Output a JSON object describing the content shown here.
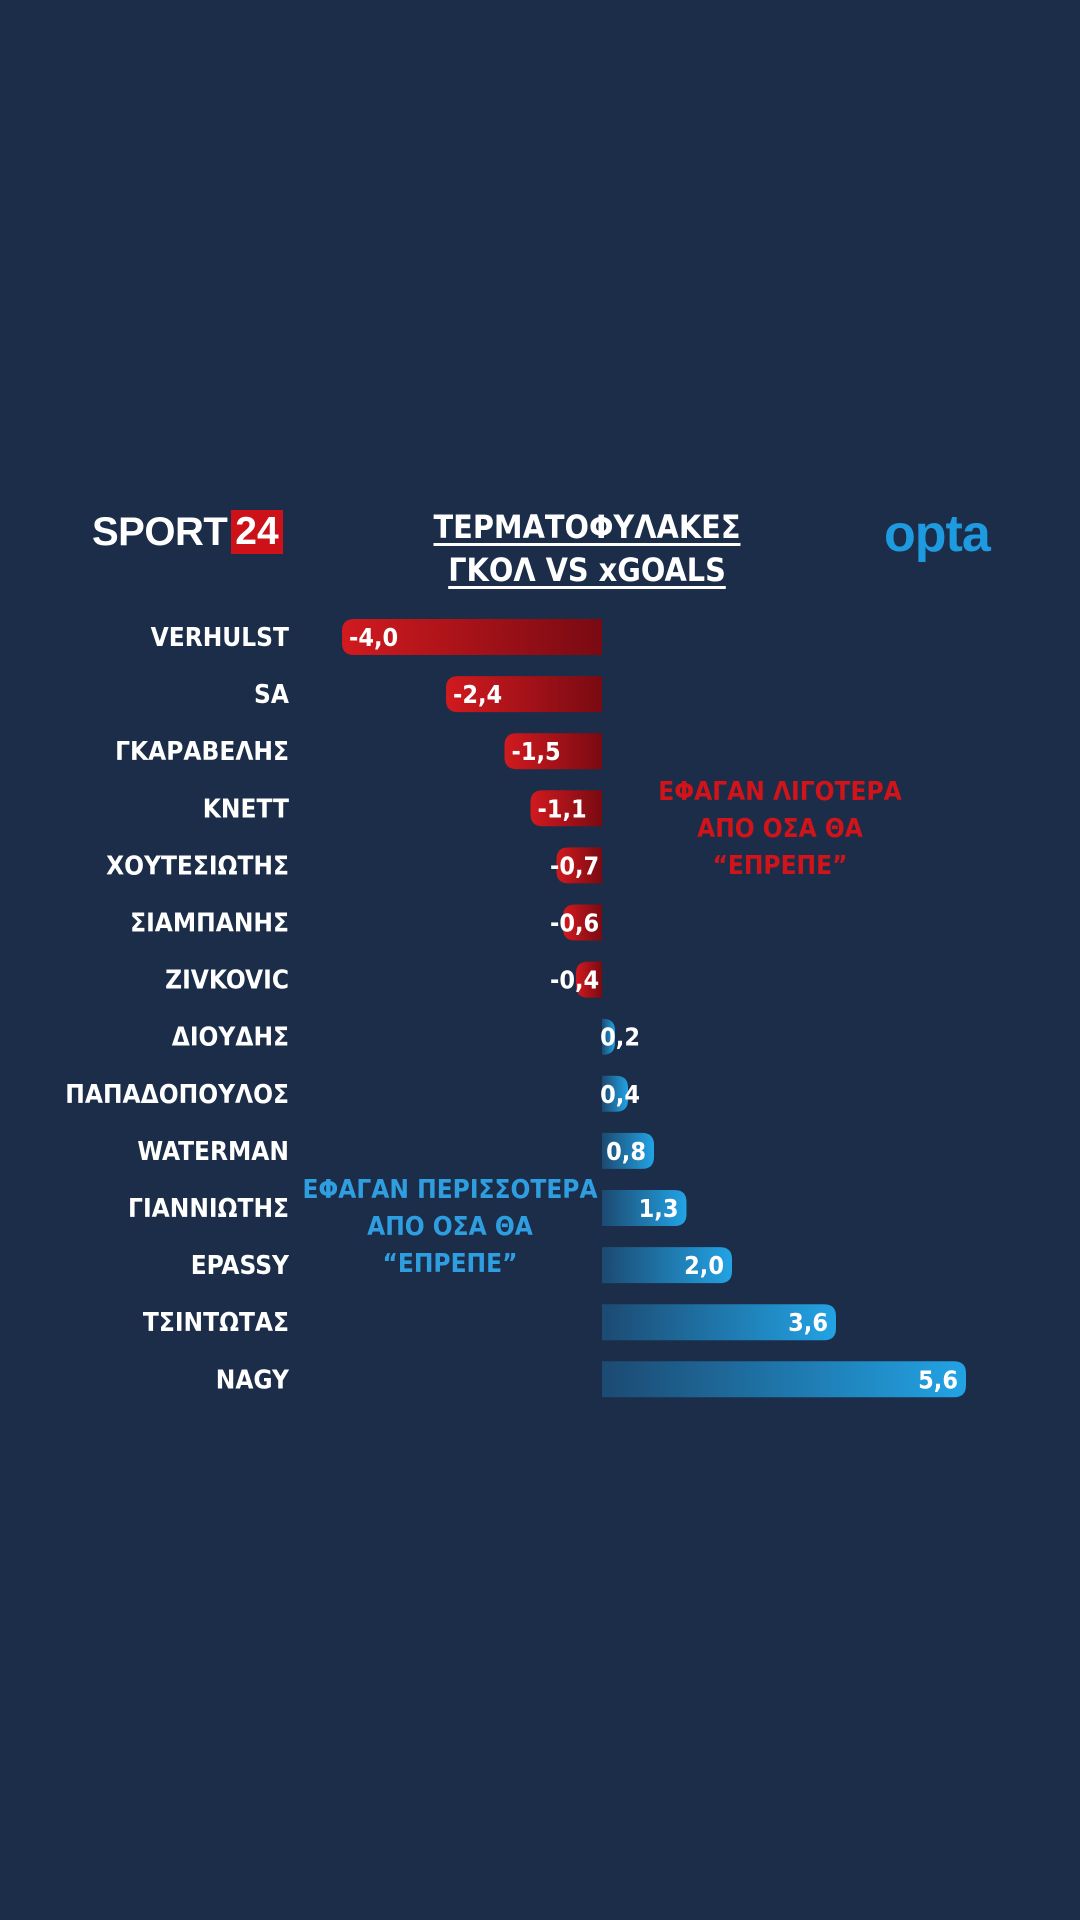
{
  "header": {
    "brand_word": "SPORT",
    "brand_number": "24",
    "title_line1": "ΤΕΡΜΑΤΟΦΥΛΑΚΕΣ",
    "title_line2": "ΓΚΟΛ VS xGOALS",
    "partner_logo": "opta"
  },
  "annotations": {
    "negative_line1": "ΕΦΑΓΑΝ ΛΙΓΟΤΕΡΑ",
    "negative_line2": "ΑΠΟ ΟΣΑ ΘΑ “ΕΠΡΕΠΕ”",
    "positive_line1": "ΕΦΑΓΑΝ ΠΕΡΙΣΣΟΤΕΡΑ",
    "positive_line2": "ΑΠΟ ΟΣΑ ΘΑ “ΕΠΡΕΠΕ”"
  },
  "colors": {
    "background": "#1b2d48",
    "negative": "#c0101a",
    "positive": "#1e9be0",
    "brand_red": "#cc1118"
  },
  "chart_data": {
    "type": "bar",
    "orientation": "horizontal",
    "title": "ΤΕΡΜΑΤΟΦΥΛΑΚΕΣ ΓΚΟΛ VS xGOALS",
    "categories": [
      "VERHULST",
      "SA",
      "ΓΚΑΡΑΒΕΛΗΣ",
      "KNETT",
      "ΧΟΥΤΕΣΙΩΤΗΣ",
      "ΣΙΑΜΠΑΝΗΣ",
      "ZIVKOVIC",
      "ΔΙΟΥΔΗΣ",
      "ΠΑΠΑΔΟΠΟΥΛΟΣ",
      "WATERMAN",
      "ΓΙΑΝΝΙΩΤΗΣ",
      "EPASSY",
      "ΤΣΙΝΤΩΤΑΣ",
      "NAGY"
    ],
    "values": [
      -4.0,
      -2.4,
      -1.5,
      -1.1,
      -0.7,
      -0.6,
      -0.4,
      0.2,
      0.4,
      0.8,
      1.3,
      2.0,
      3.6,
      5.6
    ],
    "value_labels": [
      "-4,0",
      "-2,4",
      "-1,5",
      "-1,1",
      "-0,7",
      "-0,6",
      "-0,4",
      "0,2",
      "0,4",
      "0,8",
      "1,3",
      "2,0",
      "3,6",
      "5,6"
    ],
    "xlim": [
      -4.0,
      5.6
    ],
    "grid": false,
    "legend": "none"
  }
}
